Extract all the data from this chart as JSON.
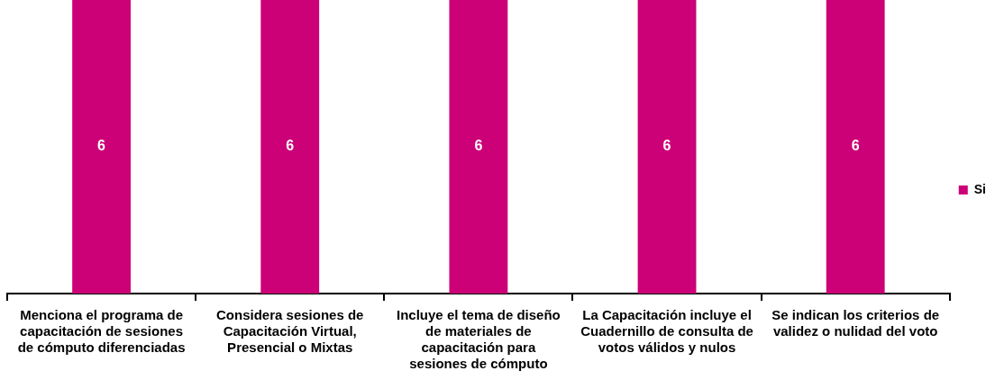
{
  "chart_data": {
    "type": "bar",
    "categories": [
      "Menciona el programa de capacitación de sesiones de cómputo diferenciadas",
      "Considera sesiones de Capacitación Virtual, Presencial o Mixtas",
      "Incluye el tema de diseño de materiales de capacitación para sesiones de cómputo",
      "La Capacitación incluye el Cuadernillo de consulta de votos válidos y nulos",
      "Se indican los criterios de validez o nulidad del voto"
    ],
    "series": [
      {
        "name": "Si",
        "color": "#cc0077",
        "values": [
          6,
          6,
          6,
          6,
          6
        ]
      }
    ],
    "ylim": [
      0,
      6
    ],
    "tick_labels": "x",
    "data_labels": true,
    "legend": "right",
    "grid": false
  }
}
